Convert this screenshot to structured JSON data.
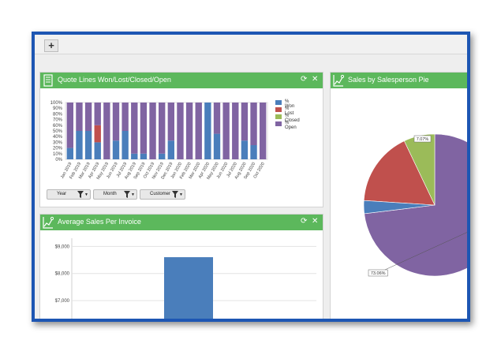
{
  "tabbar": {
    "add_label": "+"
  },
  "colors": {
    "won": "#4a7ebb",
    "lost": "#c0504d",
    "closed": "#9bbb59",
    "open": "#8064a2",
    "header": "#5cb85c"
  },
  "panel1": {
    "title": "Quote Lines Won/Lost/Closed/Open",
    "icon": "document-icon",
    "filters": [
      "Year",
      "Month",
      "Customer"
    ],
    "chart_data": {
      "type": "bar",
      "stacked": true,
      "categories": [
        "Jan 2019",
        "Feb 2019",
        "Mar 2019",
        "Apr 2019",
        "May 2019",
        "Jun 2019",
        "Jul 2019",
        "Aug 2019",
        "Sep 2019",
        "Oct 2019",
        "Nov 2019",
        "Dec 2019",
        "Jan 2020",
        "Feb 2020",
        "Mar 2020",
        "Apr 2020",
        "May 2020",
        "Jun 2020",
        "Jul 2020",
        "Aug 2020",
        "Sep 2020",
        "Oct 2020"
      ],
      "yticks": [
        "0%",
        "10%",
        "20%",
        "30%",
        "40%",
        "50%",
        "60%",
        "70%",
        "80%",
        "90%",
        "100%"
      ],
      "ylim": [
        0,
        100
      ],
      "series": [
        {
          "name": "% Won",
          "values": [
            20,
            50,
            50,
            30,
            0,
            33,
            50,
            10,
            10,
            0,
            10,
            33,
            0,
            0,
            0,
            100,
            45,
            0,
            0,
            33,
            25,
            0
          ]
        },
        {
          "name": "% Lost",
          "values": [
            0,
            0,
            0,
            30,
            0,
            0,
            0,
            0,
            0,
            0,
            0,
            0,
            0,
            0,
            0,
            0,
            0,
            0,
            0,
            0,
            0,
            0
          ]
        },
        {
          "name": "% Closed",
          "values": [
            0,
            0,
            0,
            0,
            0,
            0,
            0,
            0,
            0,
            0,
            0,
            0,
            0,
            0,
            0,
            0,
            0,
            0,
            0,
            0,
            0,
            0
          ]
        },
        {
          "name": "% Open",
          "values": [
            80,
            50,
            50,
            40,
            100,
            67,
            50,
            90,
            90,
            100,
            90,
            67,
            100,
            100,
            100,
            0,
            55,
            100,
            100,
            67,
            75,
            100
          ]
        }
      ]
    }
  },
  "panel2": {
    "title": "Average Sales Per Invoice",
    "icon": "line-chart-icon",
    "chart_data": {
      "type": "bar",
      "yticks": [
        "$7,000",
        "$8,000",
        "$9,000"
      ],
      "ytick_values": [
        7000,
        8000,
        9000
      ],
      "ylim": [
        6100,
        9300
      ],
      "series": [
        {
          "values": [
            8600
          ]
        }
      ]
    }
  },
  "panel3": {
    "title": "Sales by Salesperson Pie",
    "icon": "line-chart-icon",
    "chart_data": {
      "type": "pie",
      "labels_shown": [
        "7.07%",
        "73.06%"
      ],
      "values": [
        73.06,
        7.07,
        16.9,
        2.97
      ]
    }
  }
}
